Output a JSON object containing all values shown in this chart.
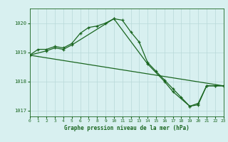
{
  "title": "Graphe pression niveau de la mer (hPa)",
  "background_color": "#d8f0f0",
  "grid_color": "#b8d8d8",
  "line_color": "#1a6620",
  "xlim": [
    0,
    23
  ],
  "ylim": [
    1016.8,
    1020.5
  ],
  "yticks": [
    1017,
    1018,
    1019,
    1020
  ],
  "xticks": [
    0,
    1,
    2,
    3,
    4,
    5,
    6,
    7,
    8,
    9,
    10,
    11,
    12,
    13,
    14,
    15,
    16,
    17,
    18,
    19,
    20,
    21,
    22,
    23
  ],
  "line1_x": [
    0,
    1,
    2,
    3,
    4,
    5,
    6,
    7,
    8,
    9,
    10,
    11,
    12,
    13,
    14,
    15,
    16,
    17,
    18,
    19,
    20,
    21,
    22,
    23
  ],
  "line1_y": [
    1018.9,
    1019.1,
    1019.1,
    1019.2,
    1019.15,
    1019.3,
    1019.65,
    1019.85,
    1019.9,
    1020.0,
    1020.15,
    1020.1,
    1019.7,
    1019.35,
    1018.65,
    1018.35,
    1018.05,
    1017.75,
    1017.45,
    1017.15,
    1017.25,
    1017.85,
    1017.85,
    1017.85
  ],
  "line2_x": [
    0,
    2,
    3,
    4,
    5,
    10,
    14,
    16,
    17,
    19,
    20,
    21,
    22,
    23
  ],
  "line2_y": [
    1018.9,
    1019.05,
    1019.15,
    1019.1,
    1019.25,
    1020.15,
    1018.6,
    1018.0,
    1017.65,
    1017.15,
    1017.2,
    1017.85,
    1017.85,
    1017.85
  ],
  "line3_x": [
    0,
    23
  ],
  "line3_y": [
    1018.9,
    1017.85
  ]
}
